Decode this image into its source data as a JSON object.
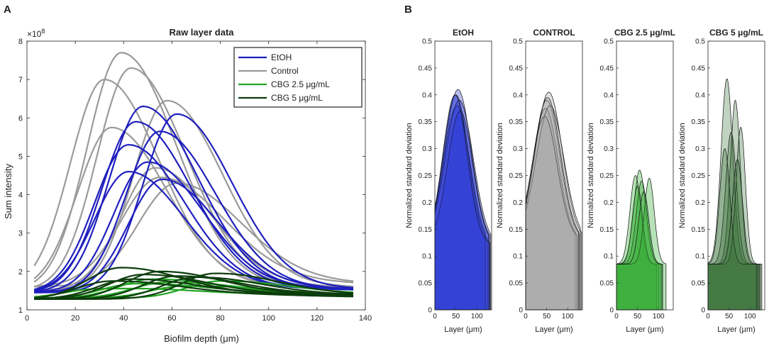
{
  "panel_a_label": "A",
  "panel_b_label": "B",
  "chart_data": [
    {
      "type": "line",
      "title": "Raw layer data",
      "xlabel": "Biofilm depth (μm)",
      "ylabel": "Sum intensity",
      "exponent_label": "×10",
      "exponent_power": "8",
      "xlim": [
        0,
        140
      ],
      "ylim": [
        1,
        8
      ],
      "xticks": [
        0,
        20,
        40,
        60,
        80,
        100,
        120,
        140
      ],
      "yticks": [
        1,
        2,
        3,
        4,
        5,
        6,
        7,
        8
      ],
      "legend": [
        {
          "label": "EtOH",
          "color": "#1f1fbf"
        },
        {
          "label": "Control",
          "color": "#9a9a9a"
        },
        {
          "label": "CBG 2.5 μg/mL",
          "color": "#22a322"
        },
        {
          "label": "CBG 5 μg/mL",
          "color": "#0d3d0d"
        }
      ],
      "series": [
        {
          "group": "Control",
          "color": "#9a9a9a",
          "start": 3,
          "end": 135,
          "peak_x": 39,
          "peak": 7.7,
          "width": 14,
          "base": 1.5
        },
        {
          "group": "Control",
          "color": "#9a9a9a",
          "start": 3,
          "end": 135,
          "peak_x": 43,
          "peak": 7.3,
          "width": 14,
          "base": 1.5
        },
        {
          "group": "Control",
          "color": "#9a9a9a",
          "start": 3,
          "end": 135,
          "peak_x": 32,
          "peak": 7.0,
          "width": 14,
          "base": 1.5
        },
        {
          "group": "Control",
          "color": "#9a9a9a",
          "start": 3,
          "end": 135,
          "peak_x": 58,
          "peak": 6.45,
          "width": 14,
          "base": 1.5
        },
        {
          "group": "Control",
          "color": "#9a9a9a",
          "start": 3,
          "end": 135,
          "peak_x": 35,
          "peak": 5.75,
          "width": 14,
          "base": 1.5
        },
        {
          "group": "Control",
          "color": "#9a9a9a",
          "start": 3,
          "end": 135,
          "peak_x": 53,
          "peak": 4.7,
          "width": 14,
          "base": 1.5
        },
        {
          "group": "Control",
          "color": "#9a9a9a",
          "start": 3,
          "end": 135,
          "peak_x": 55,
          "peak": 4.45,
          "width": 16,
          "base": 1.6
        },
        {
          "group": "Control",
          "color": "#9a9a9a",
          "start": 3,
          "end": 135,
          "peak_x": 62,
          "peak": 4.3,
          "width": 16,
          "base": 1.6
        },
        {
          "group": "EtOH",
          "color": "#1f1fbf",
          "start": 3,
          "end": 135,
          "peak_x": 48,
          "peak": 6.3,
          "width": 14,
          "base": 1.45
        },
        {
          "group": "EtOH",
          "color": "#1f1fbf",
          "start": 3,
          "end": 135,
          "peak_x": 62,
          "peak": 6.1,
          "width": 14,
          "base": 1.45
        },
        {
          "group": "EtOH",
          "color": "#1f1fbf",
          "start": 3,
          "end": 135,
          "peak_x": 45,
          "peak": 5.9,
          "width": 14,
          "base": 1.45
        },
        {
          "group": "EtOH",
          "color": "#1f1fbf",
          "start": 3,
          "end": 135,
          "peak_x": 55,
          "peak": 5.65,
          "width": 14,
          "base": 1.45
        },
        {
          "group": "EtOH",
          "color": "#1f1fbf",
          "start": 3,
          "end": 135,
          "peak_x": 42,
          "peak": 5.3,
          "width": 14,
          "base": 1.45
        },
        {
          "group": "EtOH",
          "color": "#1f1fbf",
          "start": 3,
          "end": 135,
          "peak_x": 50,
          "peak": 4.85,
          "width": 14,
          "base": 1.45
        },
        {
          "group": "EtOH",
          "color": "#1f1fbf",
          "start": 3,
          "end": 135,
          "peak_x": 42,
          "peak": 4.6,
          "width": 14,
          "base": 1.45
        },
        {
          "group": "EtOH",
          "color": "#1f1fbf",
          "start": 3,
          "end": 135,
          "peak_x": 56,
          "peak": 4.4,
          "width": 14,
          "base": 1.45
        },
        {
          "group": "CBG 2.5 μg/mL",
          "color": "#22a322",
          "start": 3,
          "end": 135,
          "peak_x": 52,
          "peak": 1.8,
          "width": 14,
          "base": 1.3
        },
        {
          "group": "CBG 2.5 μg/mL",
          "color": "#22a322",
          "start": 3,
          "end": 135,
          "peak_x": 58,
          "peak": 1.72,
          "width": 14,
          "base": 1.3
        },
        {
          "group": "CBG 2.5 μg/mL",
          "color": "#22a322",
          "start": 3,
          "end": 135,
          "peak_x": 45,
          "peak": 1.68,
          "width": 14,
          "base": 1.3
        },
        {
          "group": "CBG 2.5 μg/mL",
          "color": "#22a322",
          "start": 3,
          "end": 135,
          "peak_x": 65,
          "peak": 1.62,
          "width": 14,
          "base": 1.3
        },
        {
          "group": "CBG 2.5 μg/mL",
          "color": "#22a322",
          "start": 3,
          "end": 135,
          "peak_x": 30,
          "peak": 1.55,
          "width": 14,
          "base": 1.3
        },
        {
          "group": "CBG 2.5 μg/mL",
          "color": "#22a322",
          "start": 3,
          "end": 135,
          "peak_x": 80,
          "peak": 1.75,
          "width": 14,
          "base": 1.3
        },
        {
          "group": "CBG 5 μg/mL",
          "color": "#0d3d0d",
          "start": 3,
          "end": 135,
          "peak_x": 39,
          "peak": 2.1,
          "width": 14,
          "base": 1.28
        },
        {
          "group": "CBG 5 μg/mL",
          "color": "#0d3d0d",
          "start": 3,
          "end": 135,
          "peak_x": 55,
          "peak": 2.0,
          "width": 14,
          "base": 1.28
        },
        {
          "group": "CBG 5 μg/mL",
          "color": "#0d3d0d",
          "start": 3,
          "end": 135,
          "peak_x": 48,
          "peak": 1.92,
          "width": 14,
          "base": 1.28
        },
        {
          "group": "CBG 5 μg/mL",
          "color": "#0d3d0d",
          "start": 3,
          "end": 135,
          "peak_x": 62,
          "peak": 1.88,
          "width": 14,
          "base": 1.28
        },
        {
          "group": "CBG 5 μg/mL",
          "color": "#0d3d0d",
          "start": 3,
          "end": 135,
          "peak_x": 78,
          "peak": 1.95,
          "width": 14,
          "base": 1.28
        },
        {
          "group": "CBG 5 μg/mL",
          "color": "#0d3d0d",
          "start": 3,
          "end": 135,
          "peak_x": 43,
          "peak": 1.8,
          "width": 14,
          "base": 1.28
        },
        {
          "group": "CBG 5 μg/mL",
          "color": "#0d3d0d",
          "start": 3,
          "end": 135,
          "peak_x": 70,
          "peak": 1.85,
          "width": 14,
          "base": 1.28
        },
        {
          "group": "CBG 5 μg/mL",
          "color": "#0d3d0d",
          "start": 3,
          "end": 135,
          "peak_x": 35,
          "peak": 1.75,
          "width": 14,
          "base": 1.28
        }
      ]
    },
    {
      "type": "area",
      "ylabel": "Normalized standard deviation",
      "xlabel": "Layer (μm)",
      "xlim": [
        0,
        135
      ],
      "ylim": [
        0,
        0.5
      ],
      "xticks": [
        0,
        50,
        100
      ],
      "yticks": [
        0,
        0.05,
        0.1,
        0.15,
        0.2,
        0.25,
        0.3,
        0.35,
        0.4,
        0.45,
        0.5
      ],
      "panels": [
        {
          "title": "EtOH",
          "fill": "#1f2fd0",
          "fill_opacity": 0.32,
          "stroke": "#101010",
          "base": 0.12,
          "curves": [
            {
              "peak_x": 55,
              "peak": 0.41,
              "width": 32,
              "end": 130
            },
            {
              "peak_x": 50,
              "peak": 0.4,
              "width": 30,
              "end": 125
            },
            {
              "peak_x": 58,
              "peak": 0.39,
              "width": 33,
              "end": 133
            },
            {
              "peak_x": 52,
              "peak": 0.38,
              "width": 31,
              "end": 120
            },
            {
              "peak_x": 60,
              "peak": 0.37,
              "width": 30,
              "end": 128
            },
            {
              "peak_x": 48,
              "peak": 0.4,
              "width": 29,
              "end": 131
            }
          ]
        },
        {
          "title": "CONTROL",
          "fill": "#a6a6a6",
          "fill_opacity": 0.32,
          "stroke": "#101010",
          "base": 0.13,
          "curves": [
            {
              "peak_x": 55,
              "peak": 0.405,
              "width": 32,
              "end": 133
            },
            {
              "peak_x": 50,
              "peak": 0.39,
              "width": 31,
              "end": 128
            },
            {
              "peak_x": 47,
              "peak": 0.375,
              "width": 30,
              "end": 118
            },
            {
              "peak_x": 58,
              "peak": 0.38,
              "width": 33,
              "end": 130
            },
            {
              "peak_x": 45,
              "peak": 0.36,
              "width": 30,
              "end": 122
            },
            {
              "peak_x": 52,
              "peak": 0.395,
              "width": 31,
              "end": 126
            }
          ]
        },
        {
          "title": "CBG 2.5 μg/mL",
          "fill": "#2eaa2e",
          "fill_opacity": 0.34,
          "stroke": "#101010",
          "base": 0.085,
          "curves": [
            {
              "peak_x": 55,
              "peak": 0.26,
              "width": 14,
              "end": 105
            },
            {
              "peak_x": 45,
              "peak": 0.25,
              "width": 13,
              "end": 95
            },
            {
              "peak_x": 60,
              "peak": 0.24,
              "width": 13,
              "end": 100
            },
            {
              "peak_x": 50,
              "peak": 0.23,
              "width": 12,
              "end": 110
            },
            {
              "peak_x": 78,
              "peak": 0.245,
              "width": 12,
              "end": 118
            },
            {
              "peak_x": 65,
              "peak": 0.22,
              "width": 12,
              "end": 108
            }
          ]
        },
        {
          "title": "CBG 5 μg/mL",
          "fill": "#2f6a2f",
          "fill_opacity": 0.3,
          "stroke": "#101010",
          "base": 0.085,
          "curves": [
            {
              "peak_x": 45,
              "peak": 0.43,
              "width": 14,
              "end": 120
            },
            {
              "peak_x": 65,
              "peak": 0.39,
              "width": 12,
              "end": 125
            },
            {
              "peak_x": 55,
              "peak": 0.33,
              "width": 13,
              "end": 118
            },
            {
              "peak_x": 78,
              "peak": 0.34,
              "width": 11,
              "end": 128
            },
            {
              "peak_x": 40,
              "peak": 0.3,
              "width": 12,
              "end": 115
            },
            {
              "peak_x": 70,
              "peak": 0.28,
              "width": 12,
              "end": 122
            }
          ]
        }
      ]
    }
  ]
}
